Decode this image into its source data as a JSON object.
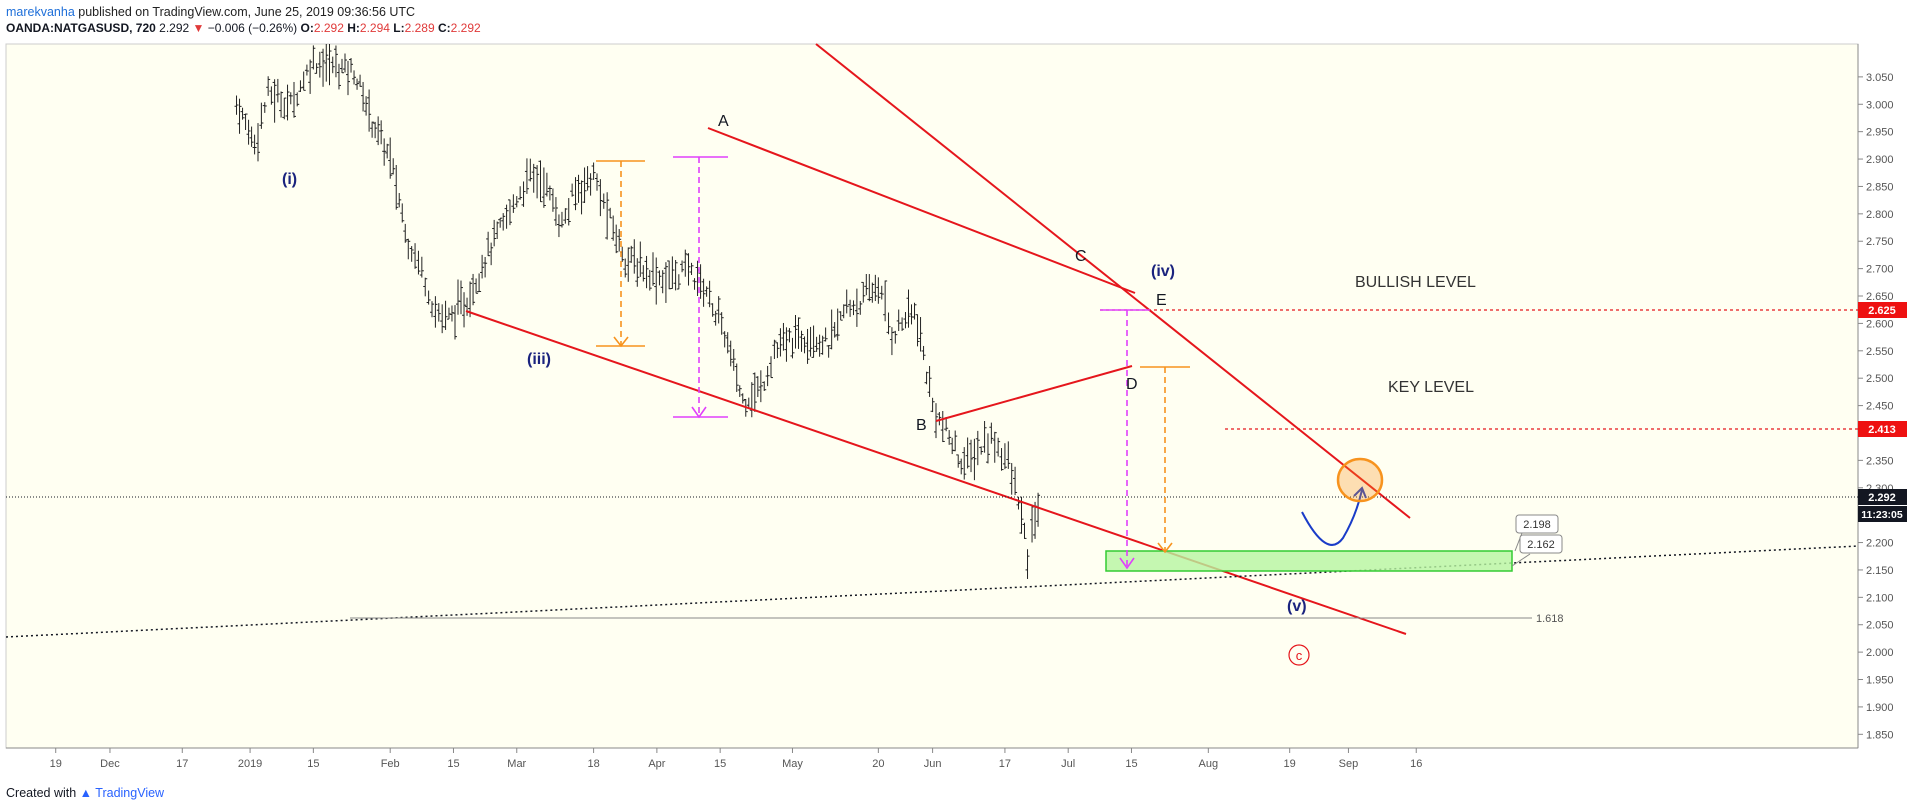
{
  "header": {
    "author": "marekvanha",
    "published_text": "published on TradingView.com, June 25, 2019 09:36:56 UTC",
    "symbol": "OANDA:NATGASUSD, 720",
    "last": "2.292",
    "change_arrow": "▼",
    "change": "−0.006 (−0.26%)",
    "o_label": "O:",
    "o_value": "2.292",
    "h_label": "H:",
    "h_value": "2.294",
    "l_label": "L:",
    "l_value": "2.289",
    "c_label": "C:",
    "c_value": "2.292"
  },
  "footer": {
    "created_with": "Created with",
    "brand": "TradingView"
  },
  "colors": {
    "chart_bg": "#fffff2",
    "trendline": "#e5161c",
    "wave_blue": "#1a237e",
    "magenta": "#e040fb",
    "orange": "#f7931e",
    "green_zone": "#b7f5a0",
    "green_border": "#33cc33",
    "price_tag_red": "#ee1111",
    "price_tag_dark": "#131722"
  },
  "chart_data": {
    "type": "line",
    "ylim": [
      1.825,
      3.11
    ],
    "y_ticks": [
      "3.050",
      "3.000",
      "2.950",
      "2.900",
      "2.850",
      "2.800",
      "2.750",
      "2.700",
      "2.650",
      "2.600",
      "2.550",
      "2.500",
      "2.450",
      "2.400",
      "2.350",
      "2.300",
      "2.250",
      "2.200",
      "2.150",
      "2.100",
      "2.050",
      "2.000",
      "1.950",
      "1.900",
      "1.850"
    ],
    "y_tick_values": [
      3.05,
      3.0,
      2.95,
      2.9,
      2.85,
      2.8,
      2.75,
      2.7,
      2.65,
      2.6,
      2.55,
      2.5,
      2.45,
      2.4,
      2.35,
      2.3,
      2.25,
      2.2,
      2.15,
      2.1,
      2.05,
      2.0,
      1.95,
      1.9,
      1.85
    ],
    "x_ticks": [
      "19",
      "Dec",
      "17",
      "2019",
      "15",
      "Feb",
      "15",
      "Mar",
      "18",
      "Apr",
      "15",
      "May",
      "20",
      "Jun",
      "17",
      "Jul",
      "15",
      "Aug",
      "19",
      "Sep",
      "16"
    ],
    "x_tick_dates": [
      "2018-11-19",
      "2018-12-01",
      "2018-12-17",
      "2019-01-01",
      "2019-01-15",
      "2019-02-01",
      "2019-02-15",
      "2019-03-01",
      "2019-03-18",
      "2019-04-01",
      "2019-04-15",
      "2019-05-01",
      "2019-05-20",
      "2019-06-01",
      "2019-06-17",
      "2019-07-01",
      "2019-07-15",
      "2019-08-01",
      "2019-08-19",
      "2019-09-01",
      "2019-09-16"
    ],
    "price_series": {
      "x": [
        "2018-12-29",
        "2019-01-02",
        "2019-01-05",
        "2019-01-10",
        "2019-01-15",
        "2019-01-20",
        "2019-01-24",
        "2019-01-28",
        "2019-02-01",
        "2019-02-05",
        "2019-02-08",
        "2019-02-11",
        "2019-02-14",
        "2019-02-18",
        "2019-02-22",
        "2019-02-26",
        "2019-03-01",
        "2019-03-04",
        "2019-03-07",
        "2019-03-11",
        "2019-03-14",
        "2019-03-18",
        "2019-03-21",
        "2019-03-25",
        "2019-03-29",
        "2019-04-03",
        "2019-04-08",
        "2019-04-12",
        "2019-04-16",
        "2019-04-20",
        "2019-04-24",
        "2019-04-27",
        "2019-05-01",
        "2019-05-05",
        "2019-05-09",
        "2019-05-13",
        "2019-05-16",
        "2019-05-20",
        "2019-05-23",
        "2019-05-26",
        "2019-05-28",
        "2019-05-30",
        "2019-06-01",
        "2019-06-04",
        "2019-06-08",
        "2019-06-11",
        "2019-06-14",
        "2019-06-17",
        "2019-06-20",
        "2019-06-22",
        "2019-06-23",
        "2019-06-25"
      ],
      "close": [
        3.0,
        2.93,
        3.02,
        3.0,
        3.08,
        3.07,
        3.06,
        2.97,
        2.9,
        2.75,
        2.7,
        2.62,
        2.61,
        2.64,
        2.72,
        2.78,
        2.83,
        2.87,
        2.86,
        2.78,
        2.84,
        2.87,
        2.8,
        2.72,
        2.7,
        2.68,
        2.7,
        2.66,
        2.58,
        2.46,
        2.48,
        2.55,
        2.57,
        2.58,
        2.56,
        2.63,
        2.64,
        2.67,
        2.58,
        2.61,
        2.62,
        2.54,
        2.45,
        2.4,
        2.34,
        2.37,
        2.39,
        2.36,
        2.28,
        2.17,
        2.22,
        2.292
      ]
    },
    "levels": [
      {
        "name": "BULLISH LEVEL",
        "value": 2.625
      },
      {
        "name": "KEY LEVEL",
        "value": 2.413
      },
      {
        "name": "last",
        "value": 2.292,
        "time": "11:23:05"
      }
    ],
    "support_zone": {
      "from": 2.162,
      "to": 2.198,
      "labels": [
        "2.198",
        "2.162"
      ]
    },
    "fib_level": {
      "label": "1.618",
      "value": 2.082
    },
    "wave_labels": [
      "(i)",
      "(iii)",
      "(iv)",
      "(v)",
      "A",
      "B",
      "C",
      "D",
      "E",
      "c"
    ]
  }
}
